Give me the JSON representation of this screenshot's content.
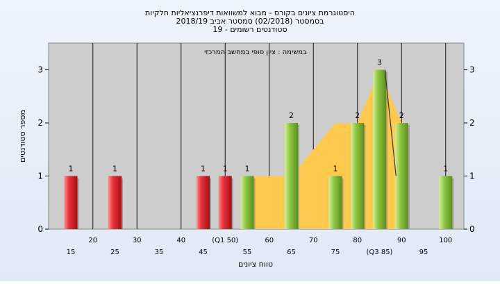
{
  "chart_data": {
    "type": "bar",
    "title_lines": [
      "היסטוגרמת ציונים בקורס - מבוא למשוואות דיפרנציאליות חלקיות",
      "בסמסטר  (02/2018)  סמסטר אביב 2018/19",
      "סטודנטים רשומים - 19"
    ],
    "inner_label": "במשימה : ציון סופי במחשב המרכזי",
    "xlabel": "טווח ציונים",
    "ylabel": "מספר סטודנטים",
    "ylim": [
      0,
      3.5
    ],
    "y_ticks": [
      0,
      1,
      2,
      3
    ],
    "x_ticks_top": [
      "20",
      "30",
      "40",
      "(Q1 50)",
      "60",
      "70",
      "80",
      "90",
      "100"
    ],
    "x_ticks_bottom": [
      "15",
      "25",
      "35",
      "45",
      "55",
      "65",
      "75",
      "(Q3 85)",
      "95"
    ],
    "bars": [
      {
        "x": 15,
        "value": 1,
        "label": "1",
        "color": "red"
      },
      {
        "x": 25,
        "value": 1,
        "label": "1",
        "color": "red"
      },
      {
        "x": 45,
        "value": 1,
        "label": "1",
        "color": "red"
      },
      {
        "x": 50,
        "value": 1,
        "label": "1",
        "color": "red"
      },
      {
        "x": 55,
        "value": 1,
        "label": "1",
        "color": "green"
      },
      {
        "x": 65,
        "value": 2,
        "label": "2",
        "color": "green"
      },
      {
        "x": 75,
        "value": 1,
        "label": "1",
        "color": "green"
      },
      {
        "x": 80,
        "value": 2,
        "label": "2",
        "color": "green"
      },
      {
        "x": 85,
        "value": 3,
        "label": "3",
        "color": "green"
      },
      {
        "x": 90,
        "value": 2,
        "label": "2",
        "color": "green"
      },
      {
        "x": 100,
        "value": 1,
        "label": "1",
        "color": "green"
      }
    ],
    "area": [
      [
        55,
        1
      ],
      [
        65,
        1
      ],
      [
        75,
        2
      ],
      [
        80,
        2
      ],
      [
        85,
        3
      ],
      [
        90,
        2
      ]
    ],
    "line": [
      [
        85,
        3
      ],
      [
        90,
        1
      ]
    ],
    "colors": {
      "red": "#e8333a",
      "green": "#8cc63f",
      "area": "#ffc94d",
      "plot_bg": "#cdcdcd"
    },
    "grid": true
  }
}
